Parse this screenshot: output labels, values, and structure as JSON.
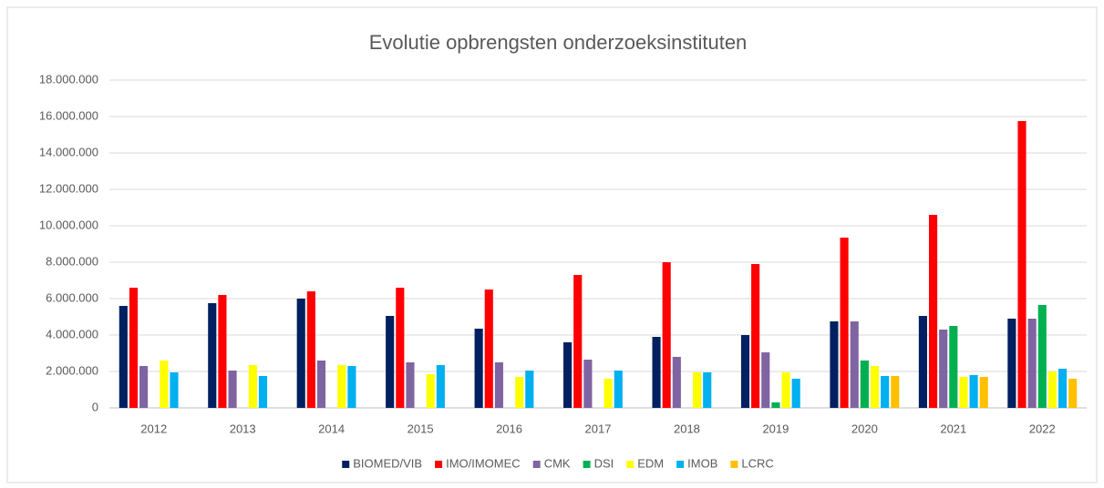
{
  "chart_data": {
    "type": "bar",
    "title": "Evolutie opbrengsten onderzoeksinstituten",
    "categories": [
      "2012",
      "2013",
      "2014",
      "2015",
      "2016",
      "2017",
      "2018",
      "2019",
      "2020",
      "2021",
      "2022"
    ],
    "series": [
      {
        "name": "BIOMED/VIB",
        "color": "#002060",
        "values": [
          5600000,
          5750000,
          6000000,
          5050000,
          4350000,
          3600000,
          3900000,
          4000000,
          4750000,
          5050000,
          4900000
        ]
      },
      {
        "name": "IMO/IMOMEC",
        "color": "#ff0000",
        "values": [
          6600000,
          6200000,
          6400000,
          6600000,
          6500000,
          7300000,
          8000000,
          7900000,
          9350000,
          10600000,
          15750000
        ]
      },
      {
        "name": "CMK",
        "color": "#8064a2",
        "values": [
          2300000,
          2050000,
          2600000,
          2500000,
          2500000,
          2650000,
          2800000,
          3050000,
          4750000,
          4300000,
          4900000
        ]
      },
      {
        "name": "DSI",
        "color": "#00b050",
        "values": [
          null,
          null,
          null,
          null,
          null,
          null,
          null,
          300000,
          2600000,
          4500000,
          5650000
        ]
      },
      {
        "name": "EDM",
        "color": "#ffff00",
        "values": [
          2600000,
          2350000,
          2350000,
          1850000,
          1700000,
          1600000,
          1950000,
          1950000,
          2300000,
          1700000,
          2000000
        ]
      },
      {
        "name": "IMOB",
        "color": "#00b0f0",
        "values": [
          1950000,
          1750000,
          2300000,
          2350000,
          2050000,
          2050000,
          1950000,
          1600000,
          1750000,
          1800000,
          2150000
        ]
      },
      {
        "name": "LCRC",
        "color": "#ffc000",
        "values": [
          null,
          null,
          null,
          null,
          null,
          null,
          null,
          null,
          1750000,
          1700000,
          1600000
        ]
      }
    ],
    "ylim": [
      0,
      18000000
    ],
    "yticks": [
      0,
      {
        "value": 2000000,
        "label": "2.000.000"
      },
      {
        "value": 4000000,
        "label": "4.000.000"
      },
      {
        "value": 6000000,
        "label": "6.000.000"
      },
      {
        "value": 8000000,
        "label": "8.000.000"
      },
      {
        "value": 10000000,
        "label": "10.000.000"
      },
      {
        "value": 12000000,
        "label": "12.000.000"
      },
      {
        "value": 14000000,
        "label": "14.000.000"
      },
      {
        "value": 16000000,
        "label": "16.000.000"
      },
      {
        "value": 18000000,
        "label": "18.000.000"
      }
    ],
    "grid": true,
    "legend": "bottom"
  }
}
